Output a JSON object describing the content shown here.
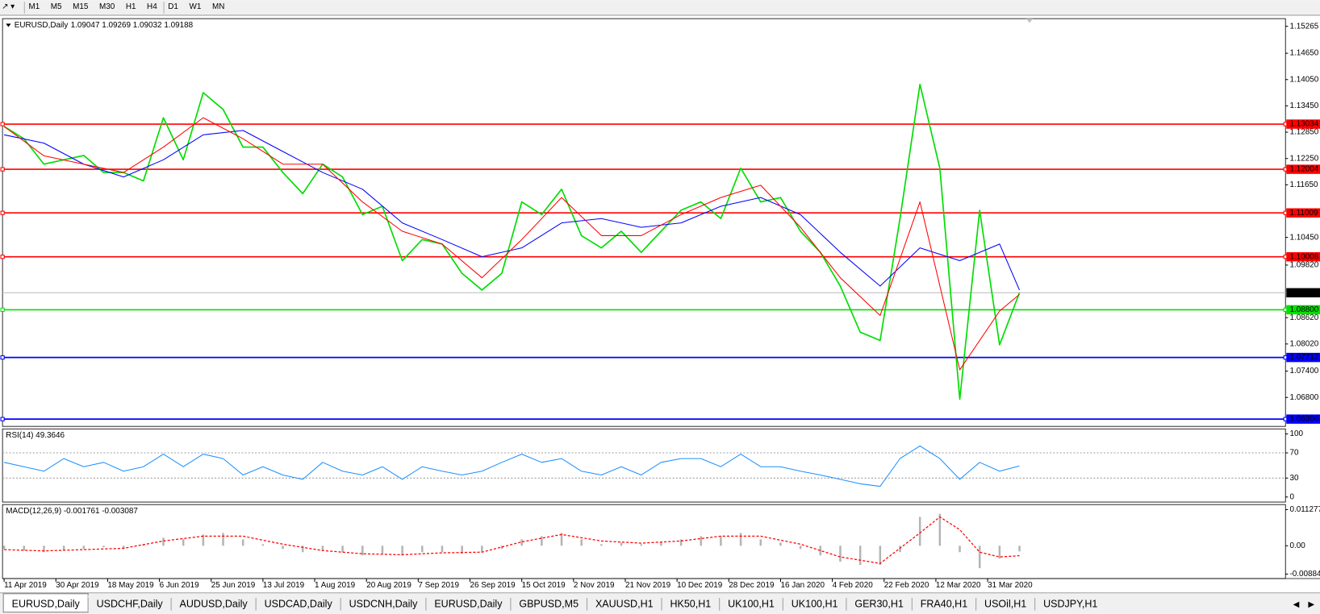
{
  "toolbar": {
    "periods": [
      "M1",
      "M5",
      "M15",
      "M30",
      "H1",
      "H4",
      "D1",
      "W1",
      "MN"
    ]
  },
  "header": {
    "symbol": "EURUSD,Daily",
    "ohlc": "1.09047 1.09269 1.09032 1.09188"
  },
  "chart_data": [
    {
      "type": "line",
      "xlim": [
        -0.4,
        321.8
      ],
      "ylim": [
        1.0614,
        1.1544
      ],
      "xticks": [
        {
          "value": 0,
          "label": "11 Apr 2019"
        },
        {
          "value": 13,
          "label": "30 Apr 2019"
        },
        {
          "value": 26,
          "label": "18 May 2019"
        },
        {
          "value": 39,
          "label": "6 Jun 2019"
        },
        {
          "value": 52,
          "label": "25 Jun 2019"
        },
        {
          "value": 65,
          "label": "13 Jul 2019"
        },
        {
          "value": 78,
          "label": "1 Aug 2019"
        },
        {
          "value": 91,
          "label": "20 Aug 2019"
        },
        {
          "value": 104,
          "label": "7 Sep 2019"
        },
        {
          "value": 117,
          "label": "26 Sep 2019"
        },
        {
          "value": 130,
          "label": "15 Oct 2019"
        },
        {
          "value": 143,
          "label": "2 Nov 2019"
        },
        {
          "value": 156,
          "label": "21 Nov 2019"
        },
        {
          "value": 169,
          "label": "10 Dec 2019"
        },
        {
          "value": 182,
          "label": "28 Dec 2019"
        },
        {
          "value": 195,
          "label": "16 Jan 2020"
        },
        {
          "value": 208,
          "label": "4 Feb 2020"
        },
        {
          "value": 221,
          "label": "22 Feb 2020"
        },
        {
          "value": 234,
          "label": "12 Mar 2020"
        },
        {
          "value": 247,
          "label": "31 Mar 2020"
        }
      ],
      "yticks": [
        {
          "value": 1.15265,
          "label": "1.15265"
        },
        {
          "value": 1.1465,
          "label": "1.14650"
        },
        {
          "value": 1.1405,
          "label": "1.14050"
        },
        {
          "value": 1.1345,
          "label": "1.13450"
        },
        {
          "value": 1.1285,
          "label": "1.12850"
        },
        {
          "value": 1.1225,
          "label": "1.12250"
        },
        {
          "value": 1.1165,
          "label": "1.11650"
        },
        {
          "value": 1.1045,
          "label": "1.10450"
        },
        {
          "value": 1.0982,
          "label": "1.09820"
        },
        {
          "value": 1.0862,
          "label": "1.08620"
        },
        {
          "value": 1.0802,
          "label": "1.08020"
        },
        {
          "value": 1.074,
          "label": "1.07400"
        },
        {
          "value": 1.068,
          "label": "1.06800"
        }
      ],
      "levels": [
        {
          "value": 1.13034,
          "label": "1.13034",
          "color": "#ff0000"
        },
        {
          "value": 1.12004,
          "label": "1.12004",
          "color": "#ff0000"
        },
        {
          "value": 1.11009,
          "label": "1.11009",
          "color": "#ff0000"
        },
        {
          "value": 1.10008,
          "label": "1.10008",
          "color": "#ff0000"
        },
        {
          "value": 1.088,
          "label": "1.08800",
          "color": "#00e000"
        },
        {
          "value": 1.07712,
          "label": "1.07712",
          "color": "#0000ff"
        },
        {
          "value": 1.06306,
          "label": "1.06306",
          "color": "#0000ff"
        }
      ],
      "current": {
        "value": 1.09188,
        "label": "1.09188",
        "color": "#000000"
      },
      "series": [
        {
          "color": "#00dd00",
          "width": 1.6,
          "x": [
            0,
            5,
            10,
            15,
            20,
            25,
            30,
            35,
            40,
            45,
            50,
            55,
            60,
            65,
            70,
            75,
            80,
            85,
            90,
            95,
            100,
            105,
            110,
            115,
            120,
            125,
            130,
            135,
            140,
            145,
            150,
            155,
            160,
            165,
            170,
            175,
            180,
            185,
            190,
            195,
            200,
            205,
            210,
            215,
            220,
            225,
            230,
            235,
            240,
            245,
            250,
            255
          ],
          "values": [
            1.1298,
            1.127,
            1.1212,
            1.1222,
            1.1232,
            1.1193,
            1.1193,
            1.1174,
            1.1318,
            1.1222,
            1.1375,
            1.1337,
            1.1251,
            1.1251,
            1.1193,
            1.1145,
            1.1212,
            1.1183,
            1.1097,
            1.1116,
            1.0992,
            1.104,
            1.103,
            1.0963,
            1.0925,
            1.0963,
            1.1126,
            1.1097,
            1.1155,
            1.1049,
            1.1021,
            1.1059,
            1.1011,
            1.1059,
            1.1107,
            1.1126,
            1.1088,
            1.1203,
            1.1126,
            1.1136,
            1.1059,
            1.1011,
            1.0934,
            1.0829,
            1.081,
            1.1088,
            1.1394,
            1.1203,
            1.0676,
            1.1107,
            1.08,
            1.09188
          ]
        },
        {
          "color": "#0000ff",
          "width": 1,
          "x": [
            0,
            10,
            20,
            30,
            40,
            50,
            60,
            70,
            80,
            90,
            100,
            110,
            120,
            130,
            140,
            150,
            160,
            170,
            180,
            190,
            200,
            210,
            220,
            230,
            240,
            250,
            255
          ],
          "values": [
            1.1279,
            1.126,
            1.1212,
            1.1183,
            1.1222,
            1.1279,
            1.1289,
            1.1241,
            1.1193,
            1.1155,
            1.1078,
            1.104,
            1.1001,
            1.1021,
            1.1078,
            1.1088,
            1.1068,
            1.1078,
            1.1116,
            1.1136,
            1.1097,
            1.1011,
            1.0934,
            1.1021,
            1.0992,
            1.103,
            1.0925
          ]
        },
        {
          "color": "#ff0000",
          "width": 1,
          "x": [
            0,
            10,
            20,
            30,
            40,
            50,
            60,
            70,
            80,
            90,
            100,
            110,
            120,
            130,
            140,
            150,
            160,
            170,
            180,
            190,
            200,
            210,
            220,
            230,
            240,
            250,
            255
          ],
          "values": [
            1.1298,
            1.1231,
            1.1212,
            1.1193,
            1.1251,
            1.1318,
            1.127,
            1.1212,
            1.1212,
            1.1126,
            1.1059,
            1.103,
            1.0953,
            1.104,
            1.1136,
            1.1049,
            1.1049,
            1.1097,
            1.1136,
            1.1164,
            1.1068,
            1.0953,
            1.0867,
            1.1126,
            1.0743,
            1.0877,
            1.0915
          ]
        }
      ]
    },
    {
      "type": "line",
      "title": "RSI(14) 49.3646",
      "xlim": [
        -0.4,
        321.8
      ],
      "ylim": [
        -8,
        108
      ],
      "yticks": [
        100,
        70,
        30,
        0
      ],
      "levels": [
        70,
        30
      ],
      "series": [
        {
          "color": "#1e90ff",
          "width": 1,
          "x": [
            0,
            5,
            10,
            15,
            20,
            25,
            30,
            35,
            40,
            45,
            50,
            55,
            60,
            65,
            70,
            75,
            80,
            85,
            90,
            95,
            100,
            105,
            110,
            115,
            120,
            125,
            130,
            135,
            140,
            145,
            150,
            155,
            160,
            165,
            170,
            175,
            180,
            185,
            190,
            195,
            200,
            205,
            210,
            215,
            220,
            225,
            230,
            235,
            240,
            245,
            250,
            255
          ],
          "values": [
            55,
            48,
            41,
            61,
            48,
            55,
            41,
            48,
            68,
            48,
            68,
            61,
            35,
            48,
            35,
            28,
            55,
            41,
            35,
            48,
            28,
            48,
            41,
            35,
            41,
            55,
            68,
            55,
            61,
            41,
            35,
            48,
            35,
            55,
            61,
            61,
            48,
            68,
            48,
            48,
            41,
            35,
            28,
            21,
            17,
            61,
            81,
            61,
            28,
            55,
            41,
            49.3646
          ]
        }
      ]
    },
    {
      "type": "bar",
      "title": "MACD(12,26,9) -0.001761 -0.003087",
      "xlim": [
        -0.4,
        321.8
      ],
      "ylim": [
        -0.01023,
        0.01285
      ],
      "yticks": [
        {
          "value": 0.011277,
          "label": "0.011277"
        },
        {
          "value": 0,
          "label": "0.00"
        },
        {
          "value": -0.00884,
          "label": "-0.00884"
        }
      ],
      "series": [
        {
          "type": "bar",
          "color": "#b4b4b4",
          "x": [
            0,
            5,
            10,
            15,
            20,
            25,
            30,
            35,
            40,
            45,
            50,
            55,
            60,
            65,
            70,
            75,
            80,
            85,
            90,
            95,
            100,
            105,
            110,
            115,
            120,
            125,
            130,
            135,
            140,
            145,
            150,
            155,
            160,
            165,
            170,
            175,
            180,
            185,
            190,
            195,
            200,
            205,
            210,
            215,
            220,
            225,
            230,
            235,
            240,
            245,
            250,
            255
          ],
          "values": [
            -0.001,
            -0.0015,
            -0.002,
            -0.0015,
            -0.001,
            -0.0005,
            -0.001,
            0.0005,
            0.0025,
            0.002,
            0.0035,
            0.004,
            0.002,
            0.0005,
            -0.001,
            -0.002,
            -0.0015,
            -0.002,
            -0.003,
            -0.0025,
            -0.003,
            -0.002,
            -0.002,
            -0.0025,
            -0.002,
            -0.001,
            0.002,
            0.003,
            0.004,
            0.002,
            0.0005,
            0.001,
            0.0005,
            0.001,
            0.002,
            0.003,
            0.003,
            0.004,
            0.002,
            0.001,
            -0.001,
            -0.003,
            -0.005,
            -0.006,
            -0.006,
            -0.002,
            0.009,
            0.01,
            -0.002,
            -0.007,
            -0.004,
            -0.001761
          ]
        },
        {
          "type": "line",
          "color": "#ff0000",
          "width": 1.2,
          "dash": true,
          "x": [
            0,
            10,
            20,
            30,
            40,
            50,
            60,
            70,
            80,
            90,
            100,
            110,
            120,
            130,
            140,
            150,
            160,
            170,
            180,
            190,
            200,
            210,
            220,
            230,
            235,
            240,
            245,
            250,
            255
          ],
          "values": [
            -0.0012,
            -0.0016,
            -0.0012,
            -0.0008,
            0.0015,
            0.003,
            0.003,
            0.0005,
            -0.0015,
            -0.0025,
            -0.0028,
            -0.0022,
            -0.002,
            0.0012,
            0.0035,
            0.0015,
            0.0008,
            0.0015,
            0.003,
            0.003,
            0.0005,
            -0.0035,
            -0.0055,
            0.004,
            0.009,
            0.005,
            -0.002,
            -0.0035,
            -0.003087
          ]
        }
      ]
    }
  ],
  "tabs": [
    "EURUSD,Daily",
    "USDCHF,Daily",
    "AUDUSD,Daily",
    "USDCAD,Daily",
    "USDCNH,Daily",
    "EURUSD,Daily",
    "GBPUSD,M5",
    "XAUUSD,H1",
    "HK50,H1",
    "UK100,H1",
    "UK100,H1",
    "GER30,H1",
    "FRA40,H1",
    "USOil,H1",
    "USDJPY,H1"
  ]
}
